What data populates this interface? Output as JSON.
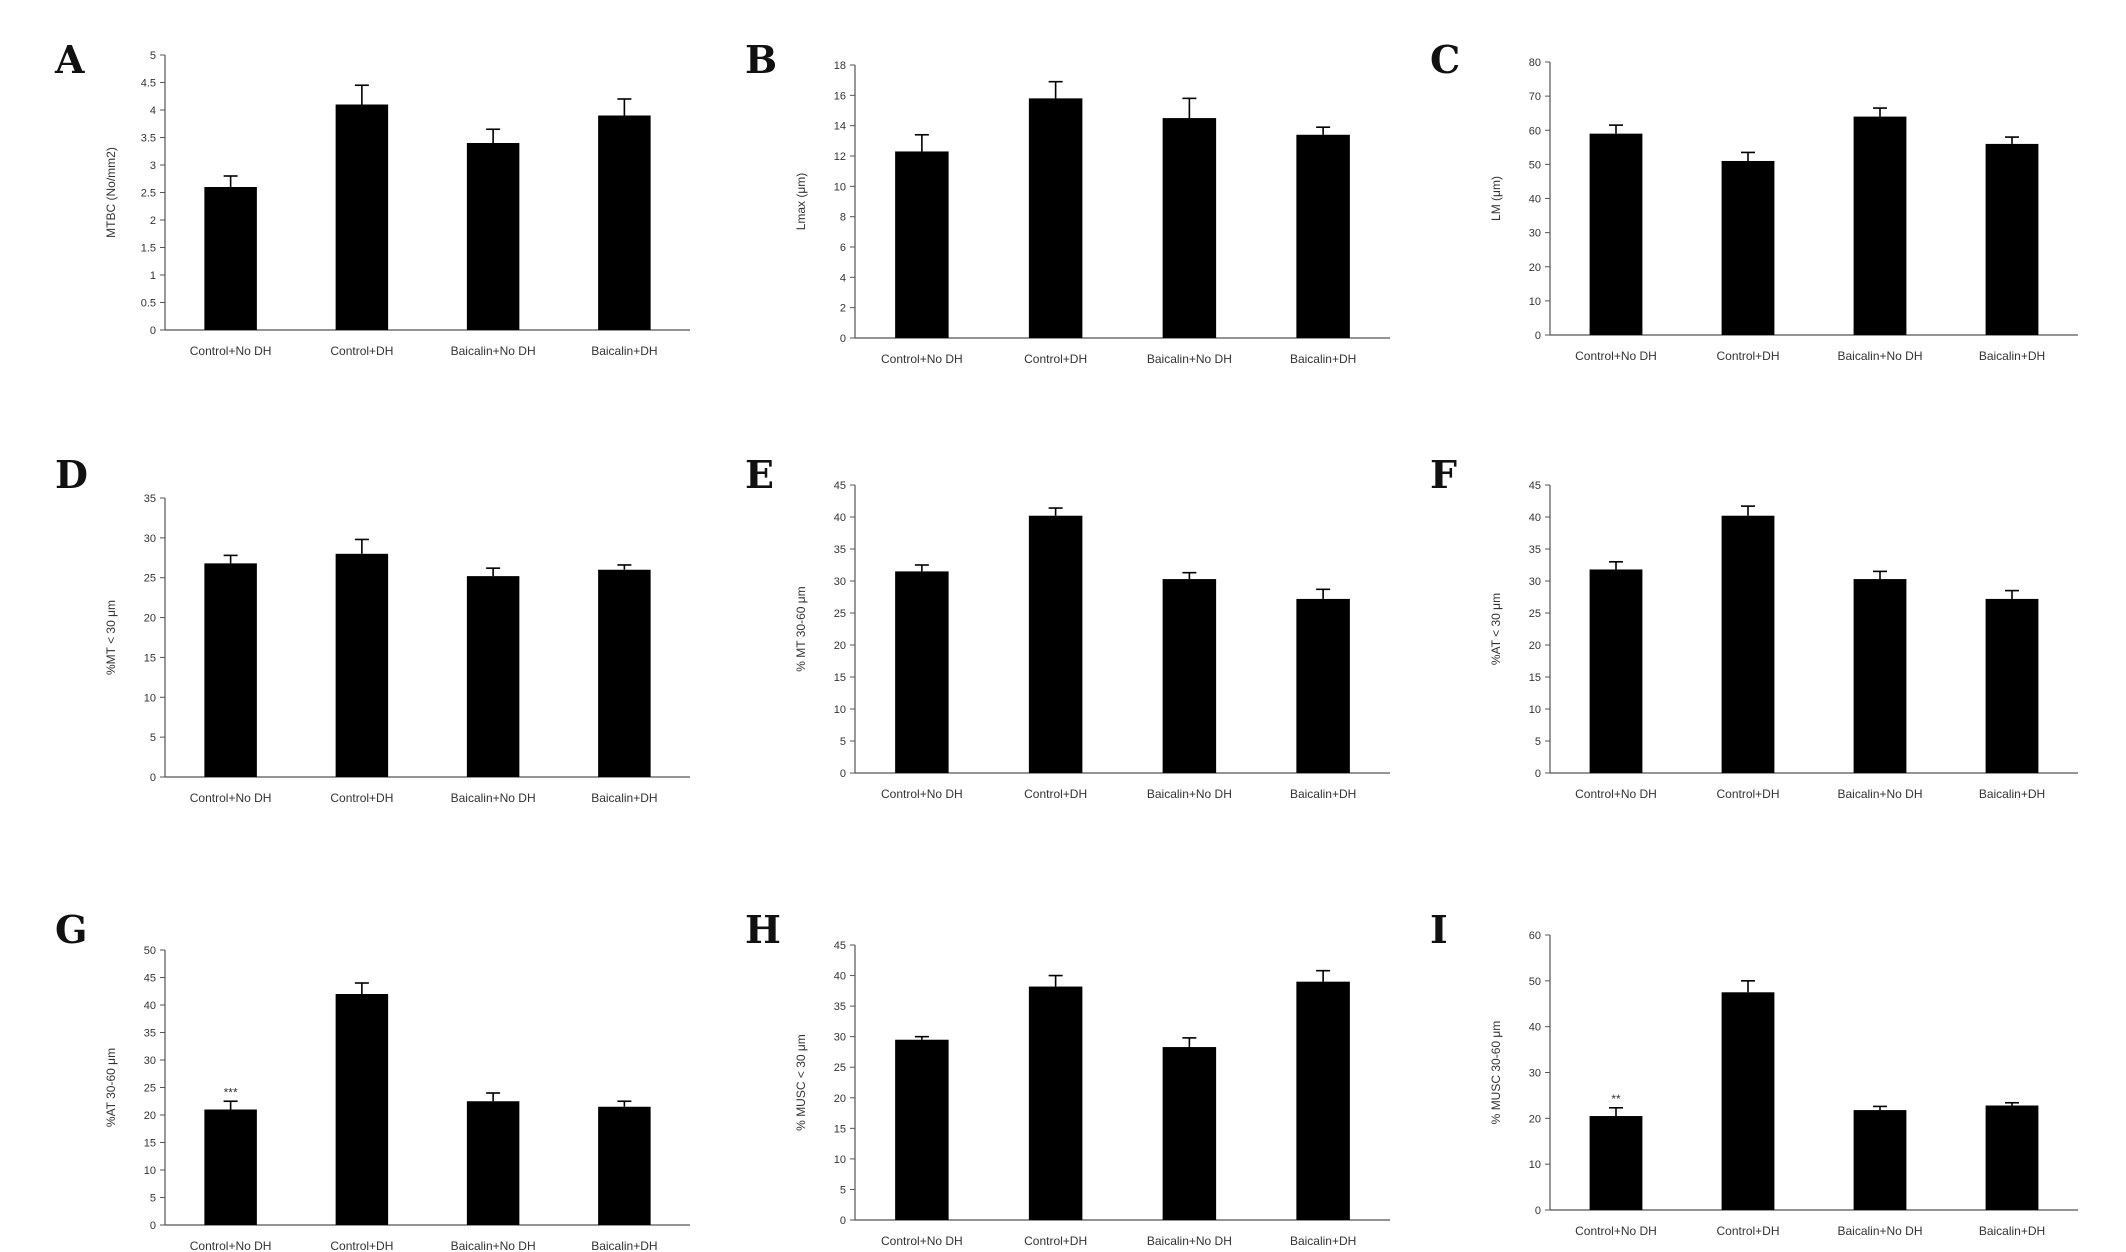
{
  "chart_data": [
    {
      "panel": "A",
      "type": "bar",
      "categories": [
        "Control+No DH",
        "Control+DH",
        "Baicalin+No DH",
        "Baicalin+DH"
      ],
      "values": [
        2.6,
        4.1,
        3.4,
        3.9
      ],
      "errors": [
        0.2,
        0.35,
        0.25,
        0.3
      ],
      "ylabel": "MTBC (No/mm2)",
      "ylim": [
        0,
        5
      ],
      "yticks": [
        "0",
        "0.5",
        "1",
        "1.5",
        "2",
        "2.5",
        "3",
        "3.5",
        "4",
        "4.5",
        "5"
      ],
      "annotations": [
        "",
        "",
        "",
        ""
      ]
    },
    {
      "panel": "B",
      "type": "bar",
      "categories": [
        "Control+No DH",
        "Control+DH",
        "Baicalin+No DH",
        "Baicalin+DH"
      ],
      "values": [
        12.3,
        15.8,
        14.5,
        13.4
      ],
      "errors": [
        1.1,
        1.1,
        1.3,
        0.5
      ],
      "ylabel": "Lmax (μm)",
      "ylim": [
        0,
        18
      ],
      "yticks": [
        "0",
        "2",
        "4",
        "6",
        "8",
        "10",
        "12",
        "14",
        "16",
        "18"
      ],
      "annotations": [
        "",
        "",
        "",
        ""
      ]
    },
    {
      "panel": "C",
      "type": "bar",
      "categories": [
        "Control+No DH",
        "Control+DH",
        "Baicalin+No DH",
        "Baicalin+DH"
      ],
      "values": [
        59,
        51,
        64,
        56
      ],
      "errors": [
        2.5,
        2.5,
        2.5,
        2
      ],
      "ylabel": "LM (μm)",
      "ylim": [
        0,
        80
      ],
      "yticks": [
        "0",
        "10",
        "20",
        "30",
        "40",
        "50",
        "60",
        "70",
        "80"
      ],
      "annotations": [
        "",
        "",
        "",
        ""
      ]
    },
    {
      "panel": "D",
      "type": "bar",
      "categories": [
        "Control+No DH",
        "Control+DH",
        "Baicalin+No DH",
        "Baicalin+DH"
      ],
      "values": [
        26.8,
        28,
        25.2,
        26
      ],
      "errors": [
        1.0,
        1.8,
        1.0,
        0.6
      ],
      "ylabel": "%MT < 30 μm",
      "ylim": [
        0,
        35
      ],
      "yticks": [
        "0",
        "5",
        "10",
        "15",
        "20",
        "25",
        "30",
        "35"
      ],
      "annotations": [
        "",
        "",
        "",
        ""
      ]
    },
    {
      "panel": "E",
      "type": "bar",
      "categories": [
        "Control+No DH",
        "Control+DH",
        "Baicalin+No DH",
        "Baicalin+DH"
      ],
      "values": [
        31.5,
        40.2,
        30.3,
        27.2
      ],
      "errors": [
        1.0,
        1.2,
        1.0,
        1.5
      ],
      "ylabel": "% MT 30-60 μm",
      "ylim": [
        0,
        45
      ],
      "yticks": [
        "0",
        "5",
        "10",
        "15",
        "20",
        "25",
        "30",
        "35",
        "40",
        "45"
      ],
      "annotations": [
        "",
        "",
        "",
        ""
      ]
    },
    {
      "panel": "F",
      "type": "bar",
      "categories": [
        "Control+No DH",
        "Control+DH",
        "Baicalin+No DH",
        "Baicalin+DH"
      ],
      "values": [
        31.8,
        40.2,
        30.3,
        27.2
      ],
      "errors": [
        1.2,
        1.5,
        1.2,
        1.3
      ],
      "ylabel": "%AT < 30 μm",
      "ylim": [
        0,
        45
      ],
      "yticks": [
        "0",
        "5",
        "10",
        "15",
        "20",
        "25",
        "30",
        "35",
        "40",
        "45"
      ],
      "annotations": [
        "",
        "",
        "",
        ""
      ]
    },
    {
      "panel": "G",
      "type": "bar",
      "categories": [
        "Control+No DH",
        "Control+DH",
        "Baicalin+No DH",
        "Baicalin+DH"
      ],
      "values": [
        21,
        42,
        22.5,
        21.5
      ],
      "errors": [
        1.5,
        2.0,
        1.5,
        1.0
      ],
      "ylabel": "%AT 30-60 μm",
      "ylim": [
        0,
        50
      ],
      "yticks": [
        "0",
        "5",
        "10",
        "15",
        "20",
        "25",
        "30",
        "35",
        "40",
        "45",
        "50"
      ],
      "annotations": [
        "***",
        "",
        "",
        ""
      ]
    },
    {
      "panel": "H",
      "type": "bar",
      "categories": [
        "Control+No DH",
        "Control+DH",
        "Baicalin+No DH",
        "Baicalin+DH"
      ],
      "values": [
        29.5,
        38.2,
        28.3,
        39
      ],
      "errors": [
        0.5,
        1.8,
        1.5,
        1.8
      ],
      "ylabel": "% MUSC < 30 μm",
      "ylim": [
        0,
        45
      ],
      "yticks": [
        "0",
        "5",
        "10",
        "15",
        "20",
        "25",
        "30",
        "35",
        "40",
        "45"
      ],
      "annotations": [
        "",
        "",
        "",
        ""
      ]
    },
    {
      "panel": "I",
      "type": "bar",
      "categories": [
        "Control+No DH",
        "Control+DH",
        "Baicalin+No DH",
        "Baicalin+DH"
      ],
      "values": [
        20.5,
        47.5,
        21.8,
        22.8
      ],
      "errors": [
        1.8,
        2.5,
        0.8,
        0.6
      ],
      "ylabel": "% MUSC 30-60 μm",
      "ylim": [
        0,
        60
      ],
      "yticks": [
        "0",
        "10",
        "20",
        "30",
        "40",
        "50",
        "60"
      ],
      "annotations": [
        "**",
        "",
        "",
        ""
      ]
    }
  ]
}
